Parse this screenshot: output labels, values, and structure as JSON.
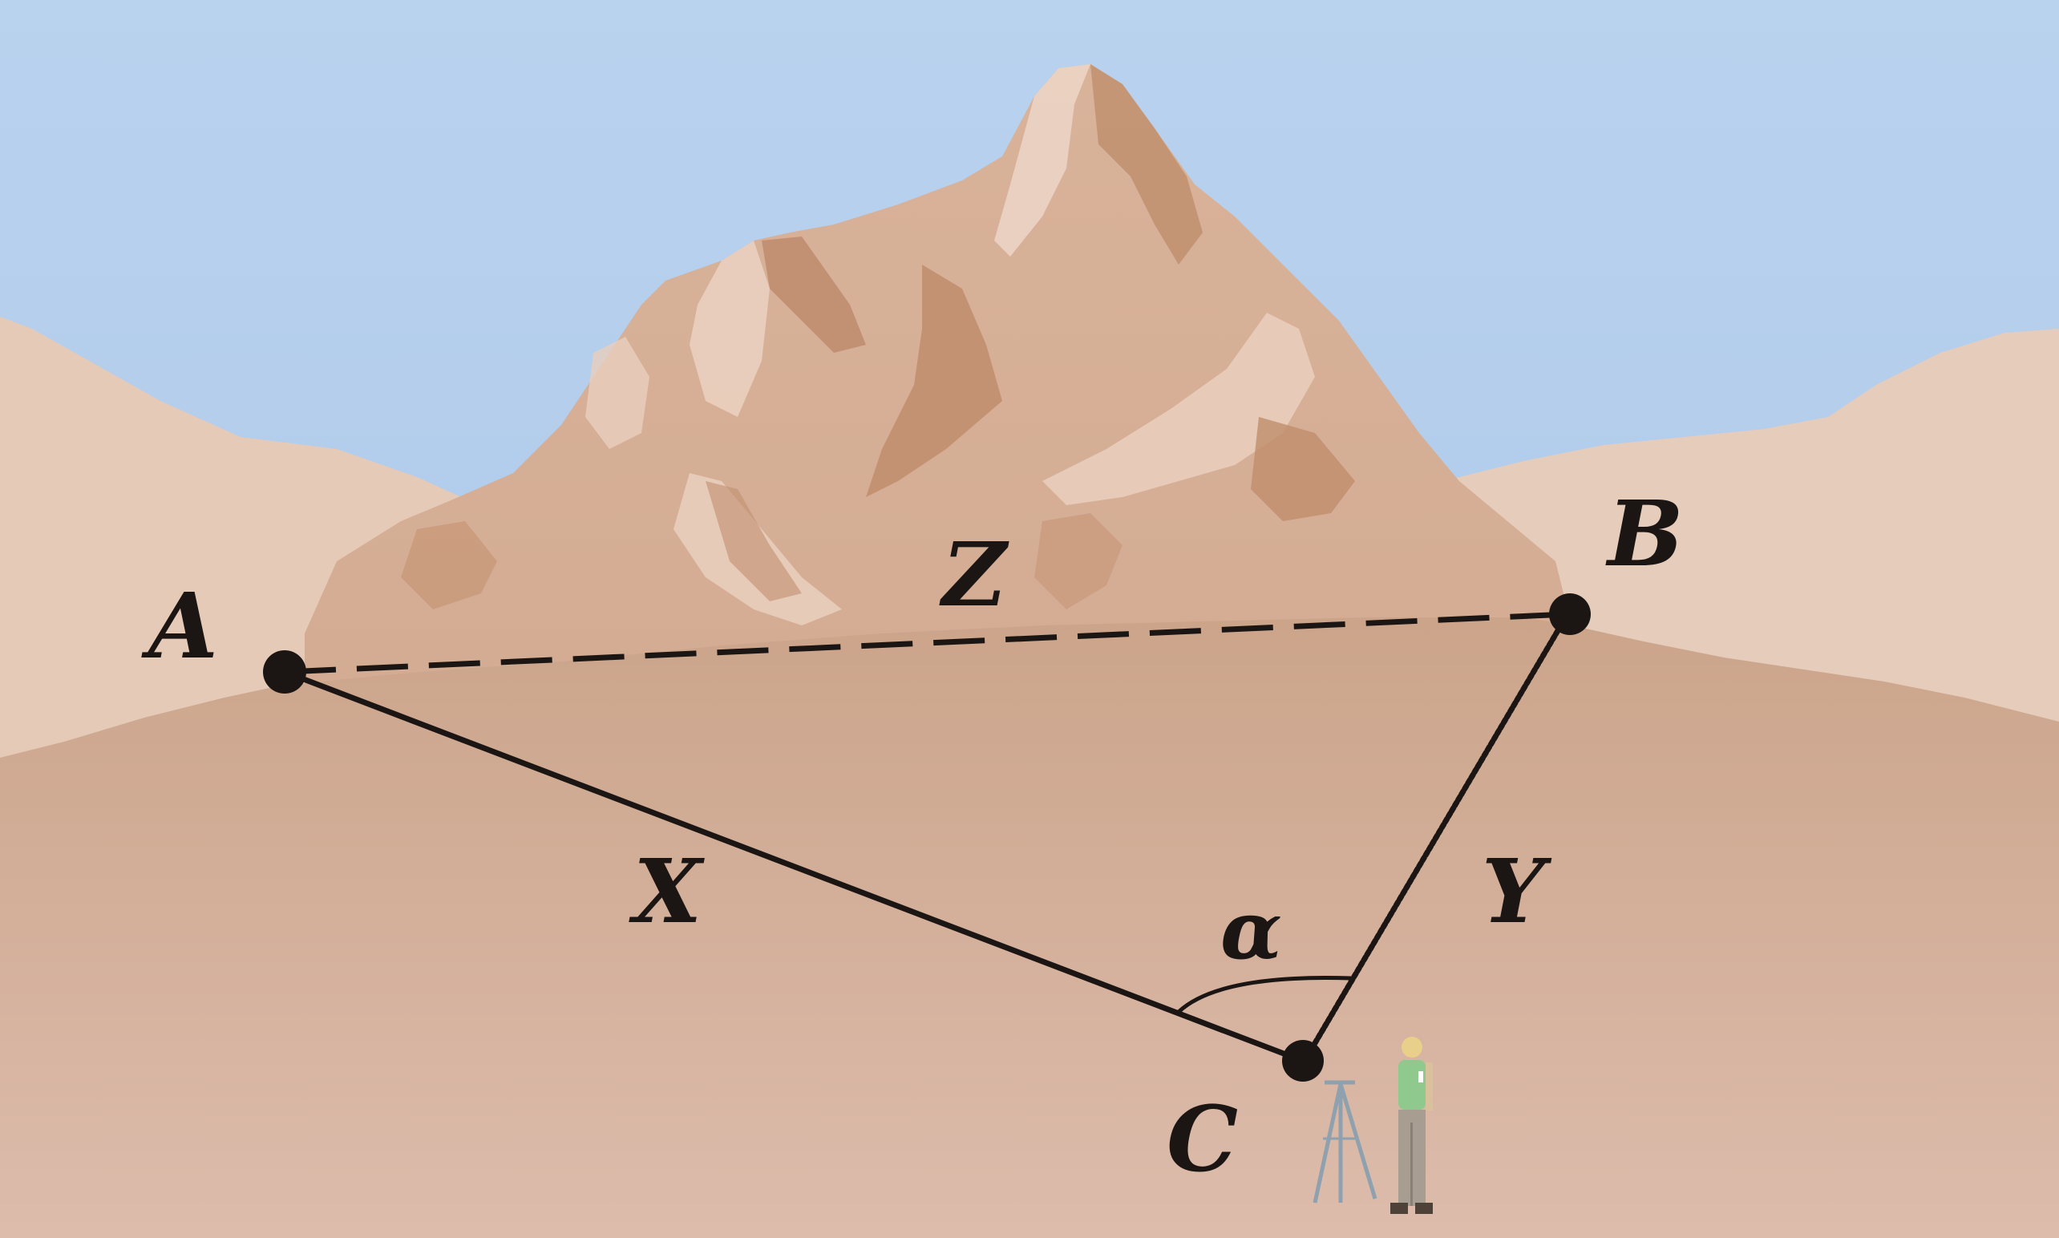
{
  "points": {
    "a": "A",
    "b": "B",
    "c": "C"
  },
  "sides": {
    "x": "X",
    "y": "Y",
    "z": "Z"
  },
  "angle": "α",
  "colors": {
    "sky": "#b6d0ee",
    "far_hills": "#e3c8b6",
    "mountain": "#d2a88d",
    "mountain_shadow": "#bf8c6d",
    "mountain_highlight": "#e9cdbb",
    "ground": "#cfa990",
    "ground_near": "#dcb9a6",
    "lines": "#1b1614"
  }
}
